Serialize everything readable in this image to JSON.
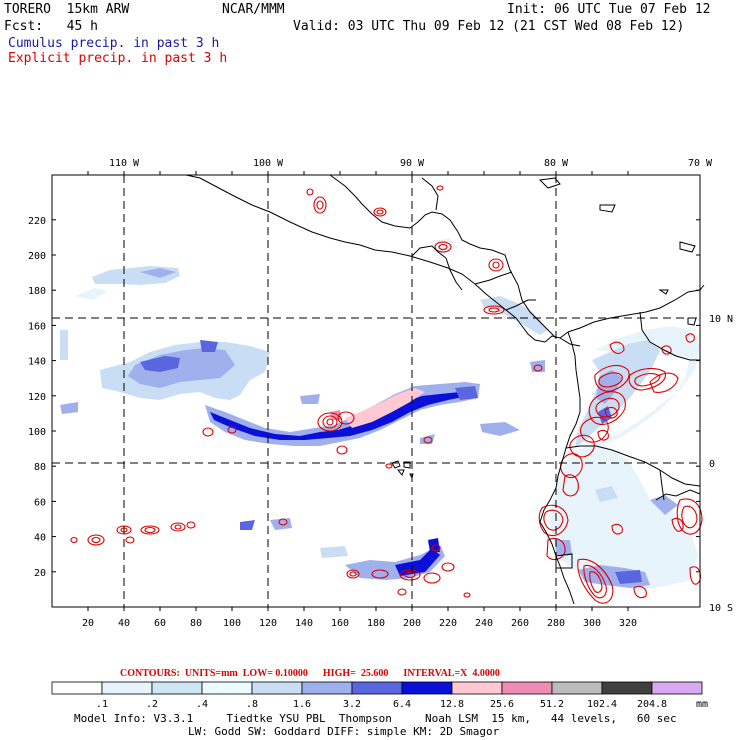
{
  "header": {
    "model": "TORERO  15km ARW",
    "org": "NCAR/MMM",
    "init": "Init: 06 UTC Tue 07 Feb 12",
    "fcst": "Fcst:   45 h",
    "valid": "Valid: 03 UTC Thu 09 Feb 12 (21 CST Wed 08 Feb 12)",
    "field1": "Cumulus precip. in past 3 h",
    "field2": "Explicit precip. in past 3 h"
  },
  "colors": {
    "field1": "#1a1aa0",
    "field2": "#dd0000",
    "contours": "#dd0000",
    "coast": "#000000",
    "grid": "#000000"
  },
  "lon_labels": [
    "110 W",
    "100 W",
    "90 W",
    "80 W",
    "70 W"
  ],
  "lat_labels": [
    "10 N",
    "0",
    "10 S"
  ],
  "x_ticks": [
    "20",
    "40",
    "60",
    "80",
    "100",
    "120",
    "140",
    "160",
    "180",
    "200",
    "220",
    "240",
    "260",
    "280",
    "300",
    "320"
  ],
  "y_ticks": [
    "20",
    "40",
    "60",
    "80",
    "100",
    "120",
    "140",
    "160",
    "180",
    "200",
    "220"
  ],
  "contours_info": "CONTOURS:  UNITS=mm  LOW= 0.10000      HIGH=  25.600      INTERVAL=X  4.0000",
  "legend": {
    "labels": [
      ".1",
      ".2",
      ".4",
      ".8",
      "1.6",
      "3.2",
      "6.4",
      "12.8",
      "25.6",
      "51.2",
      "102.4",
      "204.8"
    ],
    "unit": "mm",
    "colors": [
      "#ffffff",
      "#e8f4fb",
      "#cfe7f5",
      "#eafcff",
      "#c9def5",
      "#9fb0ec",
      "#5a66e0",
      "#0a10d8",
      "#ffc8d2",
      "#f08cb4",
      "#bcbcbc",
      "#404040",
      "#d8a8f0"
    ]
  },
  "model_info": {
    "line1": "Model Info: V3.3.1     Tiedtke YSU PBL  Thompson     Noah LSM  15 km,   44 levels,   60 sec",
    "line2": "LW: Godd SW: Goddard DIFF: simple KM: 2D Smagor"
  }
}
